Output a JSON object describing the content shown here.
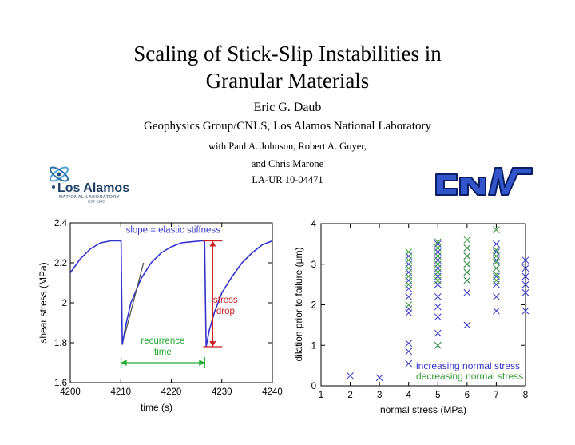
{
  "title_line1": "Scaling of Stick-Slip Instabilities in",
  "title_line2": "Granular Materials",
  "author": "Eric G. Daub",
  "affiliation": "Geophysics Group/CNLS, Los Alamos National Laboratory",
  "coauthors_line1": "with Paul A. Johnson, Robert A. Guyer,",
  "coauthors_line2": "and Chris Marone",
  "report_number": "LA-UR 10-04471",
  "logos": {
    "lanl_text_main": "Los Alamos",
    "lanl_text_sub": "NATIONAL LABORATORY",
    "lanl_text_est": "EST. 1943",
    "lanl_icon": "lanl-atom-logo",
    "cnls_icon": "cnls-logo"
  },
  "chart_data": [
    {
      "type": "line",
      "xlabel": "time (s)",
      "ylabel": "shear stress (MPa)",
      "xlim": [
        4200,
        4240
      ],
      "ylim": [
        1.6,
        2.4
      ],
      "xticks": [
        "4200",
        "4210",
        "4220",
        "4230",
        "4240"
      ],
      "yticks": [
        "1.6",
        "1.8",
        "2",
        "2.2",
        "2.4"
      ],
      "series": [
        {
          "color": "#3333cc",
          "x": [
            4200,
            4202,
            4204,
            4206,
            4208,
            4209.5,
            4210.05,
            4210.3,
            4211,
            4212,
            4214,
            4216,
            4218,
            4220,
            4222,
            4224,
            4226,
            4226.6,
            4226.9,
            4227.5,
            4228.5,
            4230,
            4232,
            4234,
            4236,
            4238,
            4240
          ],
          "y": [
            2.15,
            2.22,
            2.27,
            2.3,
            2.31,
            2.31,
            2.31,
            1.79,
            1.89,
            2.0,
            2.12,
            2.2,
            2.25,
            2.28,
            2.3,
            2.305,
            2.31,
            2.31,
            1.78,
            1.86,
            1.95,
            2.05,
            2.13,
            2.2,
            2.25,
            2.29,
            2.31
          ]
        }
      ],
      "annotations": {
        "slope_label": "slope = elastic stiffness",
        "recurrence_label_1": "recurrence",
        "recurrence_label_2": "time",
        "stress_drop_label_1": "stress",
        "stress_drop_label_2": "drop",
        "annotation_red": "#cc2222",
        "annotation_green": "#22aa33",
        "annotation_blue": "#3333cc",
        "recurrence_x": [
          4210.05,
          4226.6
        ],
        "recurrence_y": 1.7,
        "stress_drop_x": 4228.2,
        "stress_drop_y": [
          1.78,
          2.31
        ],
        "tangent_line": [
          [
            4210.7,
            1.83
          ],
          [
            4214.5,
            2.2
          ]
        ]
      }
    },
    {
      "type": "scatter",
      "xlabel": "normal stress (MPa)",
      "ylabel": "dilation prior to failure (µm)",
      "xlim": [
        1,
        8
      ],
      "ylim": [
        0,
        4
      ],
      "xticks": [
        "1",
        "2",
        "3",
        "4",
        "5",
        "6",
        "7",
        "8"
      ],
      "yticks": [
        "0",
        "1",
        "2",
        "3",
        "4"
      ],
      "legend_position": "bottom-right",
      "series": [
        {
          "name": "increasing normal stress",
          "color": "#3333cc",
          "points": [
            [
              2,
              0.25
            ],
            [
              3,
              0.2
            ],
            [
              4,
              0.55
            ],
            [
              4,
              0.85
            ],
            [
              4,
              1.05
            ],
            [
              4,
              1.8
            ],
            [
              4,
              1.9
            ],
            [
              4,
              2.2
            ],
            [
              4,
              2.4
            ],
            [
              4,
              2.6
            ],
            [
              4,
              2.8
            ],
            [
              4,
              3.0
            ],
            [
              4,
              3.2
            ],
            [
              5,
              1.0
            ],
            [
              5,
              1.3
            ],
            [
              5,
              1.7
            ],
            [
              5,
              1.95
            ],
            [
              5,
              2.2
            ],
            [
              5,
              2.5
            ],
            [
              5,
              2.7
            ],
            [
              5,
              2.9
            ],
            [
              5,
              3.1
            ],
            [
              5,
              3.3
            ],
            [
              5,
              3.5
            ],
            [
              6,
              1.5
            ],
            [
              6,
              2.3
            ],
            [
              6,
              2.6
            ],
            [
              6,
              2.8
            ],
            [
              6,
              3.0
            ],
            [
              6,
              3.2
            ],
            [
              6,
              3.4
            ],
            [
              7,
              1.85
            ],
            [
              7,
              2.2
            ],
            [
              7,
              2.5
            ],
            [
              7,
              2.7
            ],
            [
              7,
              2.9
            ],
            [
              7,
              3.1
            ],
            [
              7,
              3.3
            ],
            [
              7,
              3.5
            ],
            [
              8,
              1.85
            ],
            [
              8,
              2.3
            ],
            [
              8,
              2.5
            ],
            [
              8,
              2.7
            ],
            [
              8,
              2.9
            ],
            [
              8,
              3.1
            ]
          ]
        },
        {
          "name": "decreasing normal stress",
          "color": "#339933",
          "points": [
            [
              4,
              2.0
            ],
            [
              4,
              2.5
            ],
            [
              4,
              2.7
            ],
            [
              4,
              2.9
            ],
            [
              4,
              3.1
            ],
            [
              4,
              3.3
            ],
            [
              5,
              1.0
            ],
            [
              5,
              2.6
            ],
            [
              5,
              2.8
            ],
            [
              5,
              3.0
            ],
            [
              5,
              3.2
            ],
            [
              5,
              3.4
            ],
            [
              5,
              3.55
            ],
            [
              6,
              2.6
            ],
            [
              6,
              2.8
            ],
            [
              6,
              3.0
            ],
            [
              6,
              3.2
            ],
            [
              6,
              3.4
            ],
            [
              6,
              3.6
            ],
            [
              7,
              2.6
            ],
            [
              7,
              2.75
            ],
            [
              7,
              2.9
            ],
            [
              7,
              3.05
            ],
            [
              7,
              3.2
            ],
            [
              7,
              3.35
            ],
            [
              7,
              3.85
            ]
          ]
        }
      ]
    }
  ]
}
